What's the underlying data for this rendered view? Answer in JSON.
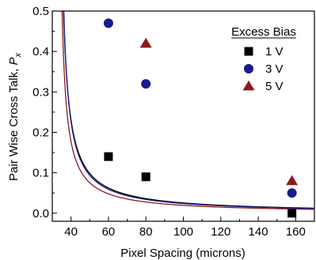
{
  "chart_data": {
    "type": "scatter",
    "title": "",
    "xlabel": "Pixel Spacing (microns)",
    "ylabel_main": "Pair Wise Cross Talk, ",
    "ylabel_symbol": "P",
    "ylabel_subscript": "x",
    "xlim": [
      30,
      170
    ],
    "ylim": [
      -0.02,
      0.5
    ],
    "x_ticks": [
      40,
      60,
      80,
      100,
      120,
      140,
      160
    ],
    "x_tick_labels": [
      "40",
      "60",
      "80",
      "100",
      "120",
      "140",
      "160"
    ],
    "y_ticks": [
      0.0,
      0.1,
      0.2,
      0.3,
      0.4,
      0.5
    ],
    "y_tick_labels": [
      "0.0",
      "0.1",
      "0.2",
      "0.3",
      "0.4",
      "0.5"
    ],
    "grid": false,
    "legend": {
      "title": "Excess Bias",
      "placement": "top-right"
    },
    "series": [
      {
        "name": "1 V",
        "marker": "square",
        "color": "#000000",
        "x": [
          60,
          80,
          158
        ],
        "y": [
          0.14,
          0.09,
          0.0
        ],
        "fit": {
          "a": 32.6,
          "b": 1.71,
          "c": 0.0
        }
      },
      {
        "name": "3 V",
        "marker": "circle",
        "color": "#1a1a8c",
        "x": [
          60,
          80,
          158
        ],
        "y": [
          0.47,
          0.32,
          0.05
        ],
        "fit": {
          "a": 32.94,
          "b": 1.6,
          "c": 0.0
        }
      },
      {
        "name": "5 V",
        "marker": "triangle",
        "color": "#8b1a1a",
        "x": [
          80,
          158
        ],
        "y": [
          0.42,
          0.08
        ],
        "fit": {
          "a": 32.62,
          "b": 1.31,
          "c": 0.0
        }
      }
    ]
  }
}
